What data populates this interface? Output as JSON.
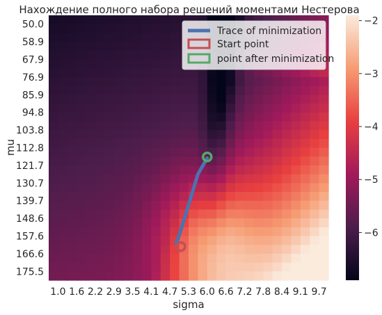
{
  "chart_data": {
    "type": "heatmap",
    "title": "Нахождение полного набора решений моментами Нестерова",
    "xlabel": "sigma",
    "ylabel": "mu",
    "x_tick_labels": [
      "1.0",
      "1.6",
      "2.2",
      "2.9",
      "3.5",
      "4.1",
      "4.7",
      "5.3",
      "6.0",
      "6.6",
      "7.2",
      "7.8",
      "8.4",
      "9.1",
      "9.7"
    ],
    "y_tick_labels": [
      "50.0",
      "58.9",
      "67.9",
      "76.9",
      "85.9",
      "94.8",
      "103.8",
      "112.8",
      "121.7",
      "130.7",
      "139.7",
      "148.6",
      "157.6",
      "166.6",
      "175.5"
    ],
    "x_range": [
      1.0,
      10.0
    ],
    "y_range": [
      50.0,
      180.0
    ],
    "colorbar": {
      "ticks": [
        "-2",
        "-3",
        "-4",
        "-5",
        "-6"
      ],
      "range": [
        -6.9,
        -1.9
      ]
    },
    "colors": [
      "#03051a",
      "#4c1d4b",
      "#a11a5b",
      "#e83f3f",
      "#f69c73",
      "#faebdd"
    ],
    "series": [
      {
        "name": "Trace of minimization",
        "kind": "line",
        "color": "#4c72b0",
        "points": [
          [
            6.1,
            120.0
          ],
          [
            5.95,
            124.0
          ],
          [
            5.8,
            128.0
          ],
          [
            5.7,
            133.0
          ],
          [
            5.6,
            138.0
          ],
          [
            5.5,
            143.0
          ],
          [
            5.4,
            148.0
          ],
          [
            5.3,
            153.0
          ],
          [
            5.2,
            158.0
          ],
          [
            5.1,
            162.0
          ]
        ]
      },
      {
        "name": "Start point",
        "kind": "marker",
        "color": "#c44e52",
        "points": [
          [
            5.25,
            163.5
          ]
        ]
      },
      {
        "name": "point after minimization",
        "kind": "marker",
        "color": "#55a868",
        "points": [
          [
            6.1,
            119.5
          ]
        ]
      }
    ],
    "legend_position": "top-right",
    "grid": false
  }
}
